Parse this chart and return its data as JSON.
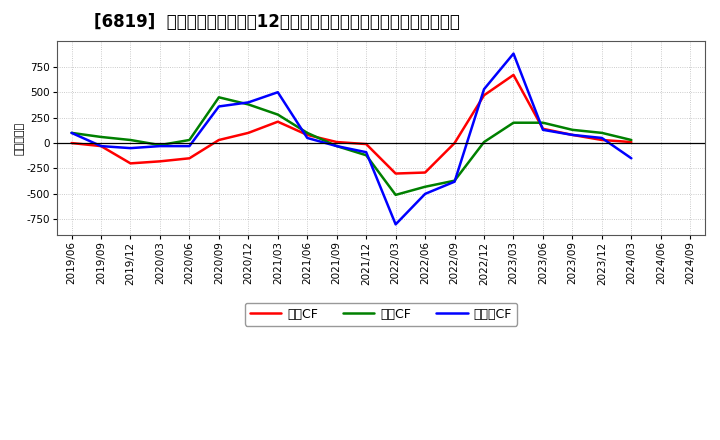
{
  "title": "[6819]  キャッシュフローの12か月移動合計の対前年同期増減額の推移",
  "ylabel": "（百万円）",
  "background_color": "#ffffff",
  "plot_bg_color": "#ffffff",
  "grid_color": "#bbbbbb",
  "x_labels": [
    "2019/06",
    "2019/09",
    "2019/12",
    "2020/03",
    "2020/06",
    "2020/09",
    "2020/12",
    "2021/03",
    "2021/06",
    "2021/09",
    "2021/12",
    "2022/03",
    "2022/06",
    "2022/09",
    "2022/12",
    "2023/03",
    "2023/06",
    "2023/09",
    "2023/12",
    "2024/03",
    "2024/06",
    "2024/09"
  ],
  "series": {
    "営業CF": [
      0,
      -30,
      -200,
      -180,
      -150,
      30,
      100,
      210,
      80,
      10,
      -10,
      -300,
      -290,
      0,
      470,
      670,
      140,
      80,
      30,
      10,
      null,
      null
    ],
    "投資CF": [
      100,
      60,
      30,
      -20,
      30,
      450,
      380,
      280,
      100,
      -30,
      -120,
      -510,
      -430,
      -370,
      10,
      200,
      200,
      130,
      100,
      30,
      null,
      null
    ],
    "フリーCF": [
      100,
      -30,
      -50,
      -30,
      -30,
      360,
      400,
      500,
      50,
      -30,
      -90,
      -800,
      -500,
      -380,
      530,
      880,
      130,
      80,
      50,
      -150,
      null,
      null
    ]
  },
  "line_colors": {
    "営業CF": "#ff0000",
    "投資CF": "#008000",
    "フリーCF": "#0000ff"
  },
  "series_order": [
    "営業CF",
    "投資CF",
    "フリーCF"
  ],
  "ylim": [
    -900,
    1000
  ],
  "yticks": [
    -750,
    -500,
    -250,
    0,
    250,
    500,
    750
  ],
  "title_fontsize": 12,
  "legend_fontsize": 9,
  "axis_fontsize": 7.5
}
